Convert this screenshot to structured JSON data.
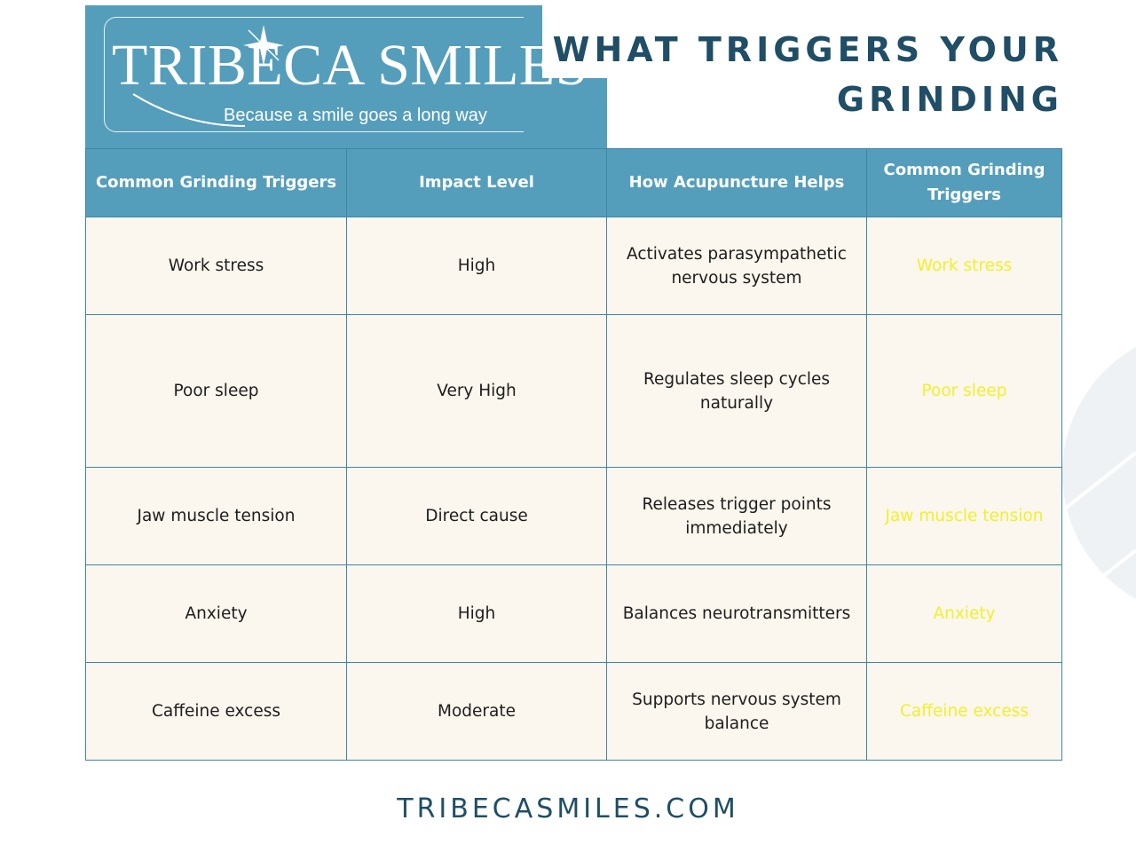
{
  "logo": {
    "name": "TRIBECA SMILES",
    "tagline": "Because a smile goes a long way"
  },
  "title": {
    "line1": "WHAT TRIGGERS YOUR",
    "line2": "GRINDING"
  },
  "table": {
    "headers": [
      "Common Grinding Triggers",
      "Impact Level",
      "How Acupuncture Helps",
      "Common Grinding Triggers"
    ],
    "rows": [
      {
        "trigger": "Work stress",
        "impact": "High",
        "help": "Activates parasympathetic nervous system",
        "mirror": "Work stress"
      },
      {
        "trigger": "Poor sleep",
        "impact": "Very High",
        "help": "Regulates sleep cycles naturally",
        "mirror": "Poor sleep"
      },
      {
        "trigger": "Jaw muscle tension",
        "impact": "Direct cause",
        "help": "Releases trigger points immediately",
        "mirror": "Jaw muscle tension"
      },
      {
        "trigger": "Anxiety",
        "impact": "High",
        "help": "Balances neurotransmitters",
        "mirror": "Anxiety"
      },
      {
        "trigger": "Caffeine excess",
        "impact": "Moderate",
        "help": "Supports nervous system balance",
        "mirror": "Caffeine excess"
      }
    ]
  },
  "footer": {
    "url": "TRIBECASMILES.COM"
  },
  "colors": {
    "brand_blue": "#559ebb",
    "title_navy": "#1f4e66",
    "cell_cream": "#fbf6ee",
    "mirror_text_yellow": "#f2f02a"
  }
}
